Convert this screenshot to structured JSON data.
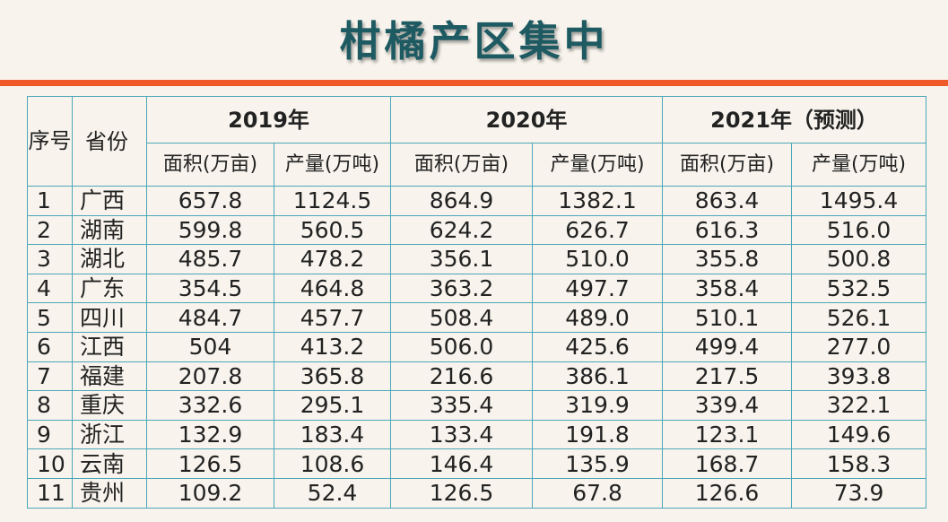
{
  "title": "柑橘产区集中",
  "table": {
    "header": {
      "index": "序号",
      "province": "省份",
      "years": [
        "2019年",
        "2020年",
        "2021年（预测）"
      ],
      "subheaders": [
        "面积(万亩)",
        "产量(万吨)",
        "面积(万亩)",
        "产量(万吨)",
        "面积(万亩)",
        "产量(万吨)"
      ]
    },
    "rows": [
      [
        "1",
        "广西",
        "657.8",
        "1124.5",
        "864.9",
        "1382.1",
        "863.4",
        "1495.4"
      ],
      [
        "2",
        "湖南",
        "599.8",
        "560.5",
        "624.2",
        "626.7",
        "616.3",
        "516.0"
      ],
      [
        "3",
        "湖北",
        "485.7",
        "478.2",
        "356.1",
        "510.0",
        "355.8",
        "500.8"
      ],
      [
        "4",
        "广东",
        "354.5",
        "464.8",
        "363.2",
        "497.7",
        "358.4",
        "532.5"
      ],
      [
        "5",
        "四川",
        "484.7",
        "457.7",
        "508.4",
        "489.0",
        "510.1",
        "526.1"
      ],
      [
        "6",
        "江西",
        "504",
        "413.2",
        "506.0",
        "425.6",
        "499.4",
        "277.0"
      ],
      [
        "7",
        "福建",
        "207.8",
        "365.8",
        "216.6",
        "386.1",
        "217.5",
        "393.8"
      ],
      [
        "8",
        "重庆",
        "332.6",
        "295.1",
        "335.4",
        "319.9",
        "339.4",
        "322.1"
      ],
      [
        "9",
        "浙江",
        "132.9",
        "183.4",
        "133.4",
        "191.8",
        "123.1",
        "149.6"
      ],
      [
        "10",
        "云南",
        "126.5",
        "108.6",
        "146.4",
        "135.9",
        "168.7",
        "158.3"
      ],
      [
        "11",
        "贵州",
        "109.2",
        "52.4",
        "126.5",
        "67.8",
        "126.6",
        "73.9"
      ]
    ]
  }
}
